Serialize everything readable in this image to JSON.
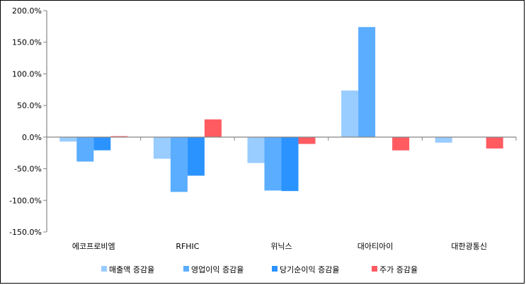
{
  "chart_data": {
    "type": "bar",
    "title": "",
    "xlabel": "",
    "ylabel": "",
    "categories": [
      "에코프로비엠",
      "RFHIC",
      "위닉스",
      "대아티아이",
      "대한광통신"
    ],
    "series": [
      {
        "name": "매출액 증감율",
        "color": "#99ccff",
        "values": [
          -7.1,
          -34.2,
          -41.0,
          73.6,
          -8.8
        ]
      },
      {
        "name": "영업이익 증감율",
        "color": "#5aadff",
        "values": [
          -38.7,
          -86.7,
          -84.5,
          174.0,
          null
        ]
      },
      {
        "name": "당기순이익 증감율",
        "color": "#2a93ff",
        "values": [
          -20.9,
          -61.0,
          -85.3,
          null,
          null
        ]
      },
      {
        "name": "주가 증감율",
        "color": "#ff5b61",
        "values": [
          1.5,
          28.0,
          -10.8,
          -21.0,
          -18.0
        ]
      }
    ],
    "ylim": [
      -150,
      200
    ],
    "yticks": [
      -150,
      -100,
      -50,
      0,
      50,
      100,
      150,
      200
    ],
    "ytick_labels": [
      "-150.0%",
      "-100.0%",
      "-50.0%",
      "0.0%",
      "50.0%",
      "100.0%",
      "150.0%",
      "200.0%"
    ],
    "grid": false,
    "legend": "bottom"
  }
}
